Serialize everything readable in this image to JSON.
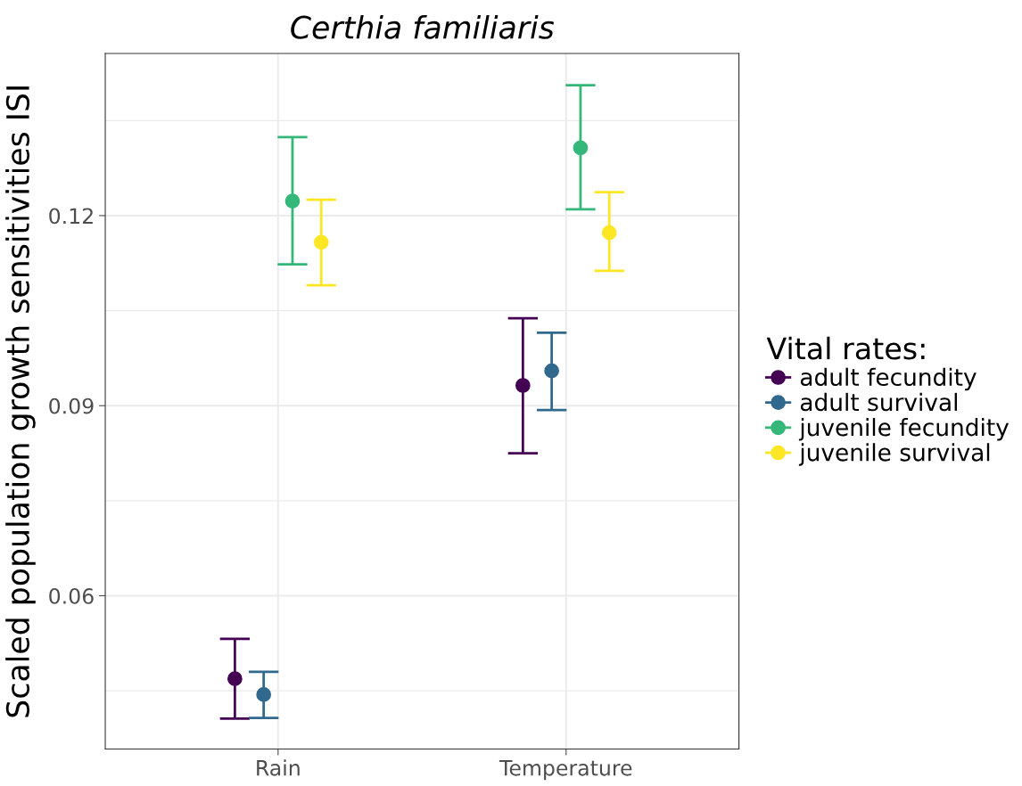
{
  "chart_data": {
    "type": "scatter",
    "title": "Certhia familiaris",
    "ylabel": "Scaled population growth sensitivities ISI",
    "legend_title": "Vital rates:",
    "categories": [
      "Rain",
      "Temperature"
    ],
    "series": [
      {
        "name": "adult fecundity",
        "color": "#440154",
        "values": [
          0.0469,
          0.0932
        ],
        "errors": [
          [
            0.0406,
            0.0532
          ],
          [
            0.0825,
            0.1038
          ]
        ]
      },
      {
        "name": "adult survival",
        "color": "#31688e",
        "values": [
          0.0444,
          0.0955
        ],
        "errors": [
          [
            0.0407,
            0.048
          ],
          [
            0.0893,
            0.1015
          ]
        ]
      },
      {
        "name": "juvenile fecundity",
        "color": "#35b779",
        "values": [
          0.1223,
          0.1307
        ],
        "errors": [
          [
            0.1123,
            0.1324
          ],
          [
            0.121,
            0.1406
          ]
        ]
      },
      {
        "name": "juvenile survival",
        "color": "#fde725",
        "values": [
          0.1158,
          0.1173
        ],
        "errors": [
          [
            0.109,
            0.1225
          ],
          [
            0.1113,
            0.1237
          ]
        ]
      }
    ],
    "ylim": [
      0.0358,
      0.1456
    ],
    "yticks": [
      0.06,
      0.09,
      0.12
    ],
    "grid": true,
    "legend": "right",
    "marker": "circle"
  }
}
